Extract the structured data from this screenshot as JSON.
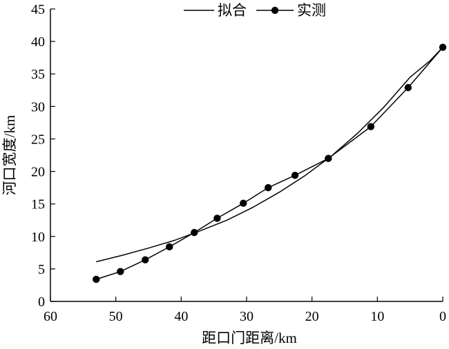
{
  "chart_data": {
    "type": "line",
    "title": "",
    "xlabel": "距口门距离/km",
    "ylabel": "河口宽度/km",
    "xlim": [
      60,
      0
    ],
    "ylim": [
      0,
      45
    ],
    "x_reversed": true,
    "xticks": [
      60,
      50,
      40,
      30,
      20,
      10,
      0
    ],
    "yticks": [
      0,
      5,
      10,
      15,
      20,
      25,
      30,
      35,
      40,
      45
    ],
    "xtick_labels": [
      "60",
      "50",
      "40",
      "30",
      "20",
      "10",
      "0"
    ],
    "ytick_labels": [
      "0",
      "5",
      "10",
      "15",
      "20",
      "25",
      "30",
      "35",
      "40",
      "45"
    ],
    "grid": false,
    "legend_position": "top-center",
    "series": [
      {
        "name": "拟合",
        "style": "line",
        "color": "#000000",
        "x": [
          53,
          49,
          45,
          41,
          37,
          33,
          29,
          25,
          21,
          17,
          13,
          9,
          5,
          2,
          0
        ],
        "y": [
          6.1,
          7.1,
          8.2,
          9.4,
          10.9,
          12.5,
          14.5,
          16.8,
          19.4,
          22.4,
          25.9,
          29.9,
          34.5,
          37.0,
          39.1
        ]
      },
      {
        "name": "实测",
        "style": "line-marker",
        "color": "#000000",
        "x": [
          53.0,
          49.3,
          45.5,
          41.8,
          38.0,
          34.5,
          30.5,
          26.7,
          22.6,
          17.5,
          11.0,
          5.3,
          0.0
        ],
        "y": [
          3.4,
          4.6,
          6.4,
          8.4,
          10.6,
          12.8,
          15.1,
          17.5,
          19.4,
          22.0,
          26.9,
          32.9,
          39.1
        ]
      }
    ]
  }
}
